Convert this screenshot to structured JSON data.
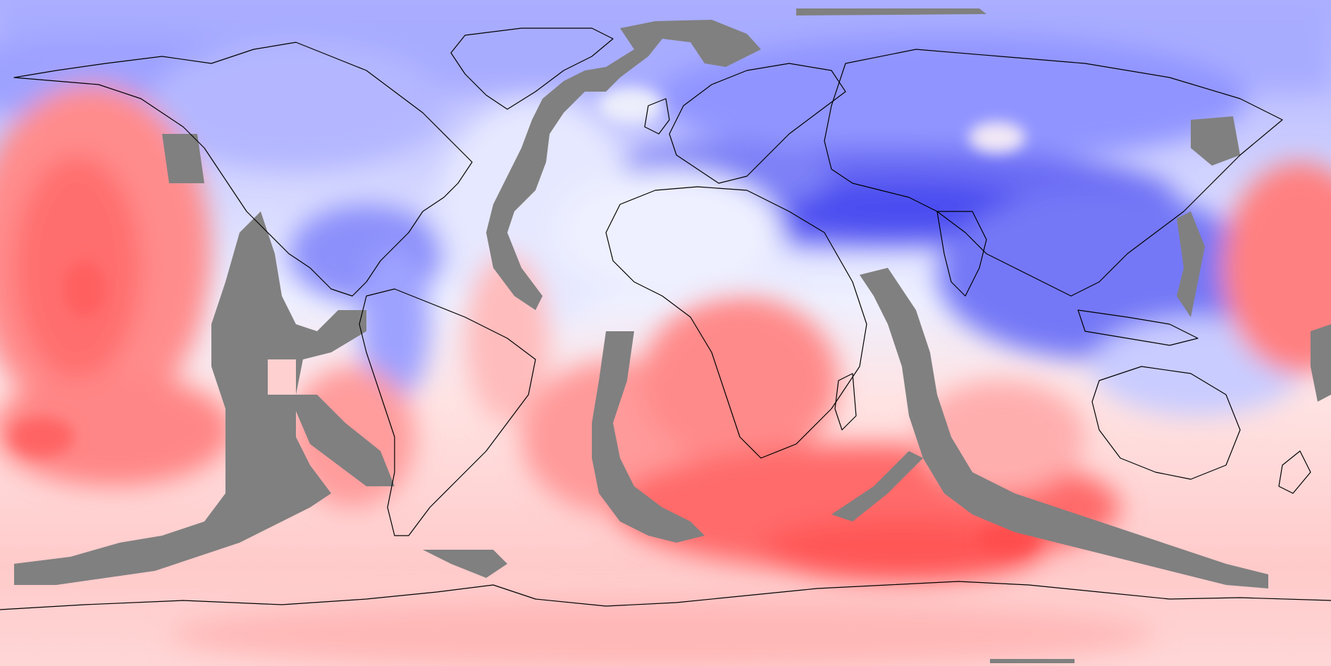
{
  "map": {
    "type": "global-anomaly-field",
    "projection": "equirectangular",
    "colormap": {
      "low": "#3a3af0",
      "mid": "#f5f5ff",
      "high": "#ff5a5a"
    },
    "mask_color": "#808080",
    "coastline_color": "#000000",
    "legend": null
  }
}
